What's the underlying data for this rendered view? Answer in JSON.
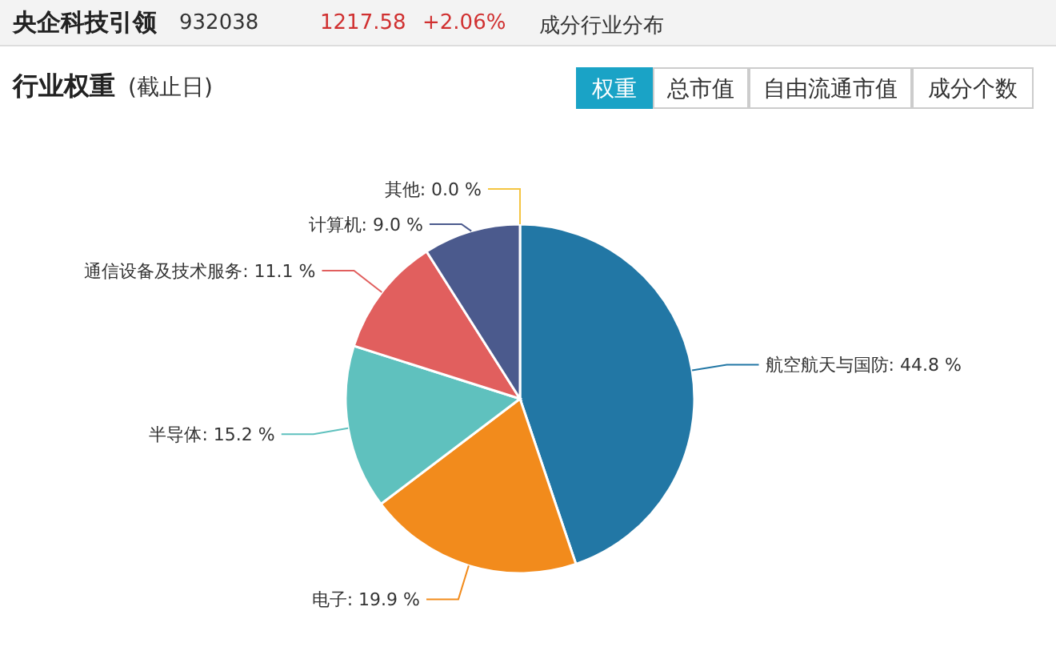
{
  "chart_data": {
    "type": "pie",
    "title": "央企科技引领",
    "subtitle": "行业权重",
    "annotations": [
      "932038",
      "1217.58",
      "+2.06%",
      "成分行业分布",
      "(截止日)",
      "权重",
      "总市值",
      "自由流通市值",
      "成分个数"
    ],
    "categories": [
      "航空航天与国防",
      "电子",
      "半导体",
      "通信设备及技术服务",
      "计算机",
      "其他"
    ],
    "values": [
      44.8,
      19.9,
      15.2,
      11.1,
      9.0,
      0.0
    ],
    "value_labels": [
      ": 44.8 %",
      ": 19.9 %",
      ": 15.2 %",
      ": 11.1 %",
      ": 9.0 %",
      ": 0.0 %"
    ],
    "colors": [
      "#2277a5",
      "#f28b1c",
      "#5fc1be",
      "#e15f5e",
      "#4b5a8d",
      "#f4c542"
    ],
    "legend": false
  }
}
